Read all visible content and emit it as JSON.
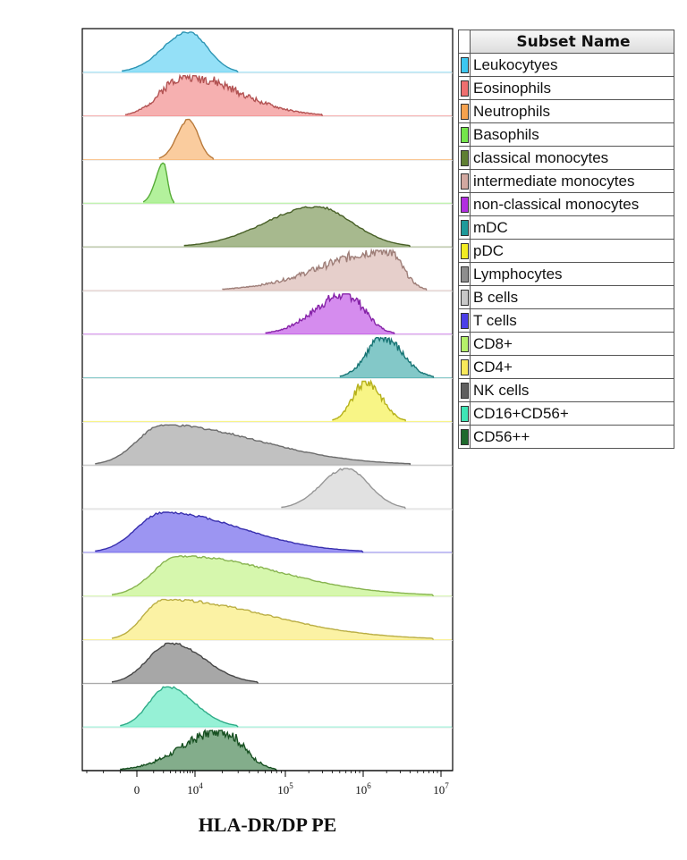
{
  "chart_data": {
    "type": "histogram-overlay",
    "xlabel": "HLA-DR/DP PE",
    "x_scale": "biexponential",
    "xlim": [
      -3000,
      10000000
    ],
    "x_ticks": [
      {
        "value": 0,
        "label": "0"
      },
      {
        "value": 10000,
        "label": "10^4"
      },
      {
        "value": 100000,
        "label": "10^5"
      },
      {
        "value": 1000000,
        "label": "10^6"
      },
      {
        "value": 10000000,
        "label": "10^7"
      }
    ],
    "legend": {
      "header": "Subset Name",
      "placement": "right"
    },
    "series": [
      {
        "name": "Leukocytyes",
        "color": "#3dc7f0",
        "range": [
          -900,
          30000
        ],
        "peak": 7500,
        "mode": "smooth"
      },
      {
        "name": "Eosinophils",
        "color": "#ef6f6f",
        "range": [
          -700,
          300000
        ],
        "peak": 6000,
        "mode": "rough"
      },
      {
        "name": "Neutrophils",
        "color": "#f6a24e",
        "range": [
          1500,
          16000
        ],
        "peak": 7500,
        "mode": "smooth"
      },
      {
        "name": "Basophils",
        "color": "#74e54a",
        "range": [
          300,
          3600
        ],
        "peak": 2000,
        "mode": "smooth"
      },
      {
        "name": "classical monocytes",
        "color": "#5f7f32",
        "range": [
          6000,
          4000000
        ],
        "peak": 250000,
        "mode": "smooth"
      },
      {
        "name": "intermediate monocytes",
        "color": "#d2a8a0",
        "range": [
          20000,
          6500000
        ],
        "peak": 2000000,
        "mode": "rough"
      },
      {
        "name": "non-classical monocytes",
        "color": "#b22ee0",
        "range": [
          60000,
          2500000
        ],
        "peak": 600000,
        "mode": "rough"
      },
      {
        "name": "mDC",
        "color": "#1e9a9a",
        "range": [
          500000,
          8000000
        ],
        "peak": 1800000,
        "mode": "rough"
      },
      {
        "name": "pDC",
        "color": "#f2ec22",
        "range": [
          400000,
          3500000
        ],
        "peak": 1100000,
        "mode": "rough"
      },
      {
        "name": "Lymphocytes",
        "color": "#8e8e8e",
        "range": [
          -2500,
          4000000
        ],
        "peak": 2000,
        "mode": "smooth"
      },
      {
        "name": "B cells",
        "color": "#c8c8c8",
        "range": [
          90000,
          3500000
        ],
        "peak": 600000,
        "mode": "smooth"
      },
      {
        "name": "T cells",
        "color": "#4a3ee8",
        "range": [
          -2500,
          1000000
        ],
        "peak": 2000,
        "mode": "smooth"
      },
      {
        "name": "CD8+",
        "color": "#b5f06a",
        "range": [
          -1500,
          8000000
        ],
        "peak": 4800,
        "mode": "smooth"
      },
      {
        "name": "CD4+",
        "color": "#f8e85a",
        "range": [
          -1500,
          8000000
        ],
        "peak": 2000,
        "mode": "smooth"
      },
      {
        "name": "NK cells",
        "color": "#5e5e5e",
        "range": [
          -1500,
          50000
        ],
        "peak": 3000,
        "mode": "smooth"
      },
      {
        "name": "CD16+CD56+",
        "color": "#3fe5b5",
        "range": [
          -1000,
          30000
        ],
        "peak": 2500,
        "mode": "smooth"
      },
      {
        "name": "CD56++",
        "color": "#1e6a2c",
        "range": [
          -1000,
          80000
        ],
        "peak": 20000,
        "mode": "rough"
      }
    ]
  }
}
